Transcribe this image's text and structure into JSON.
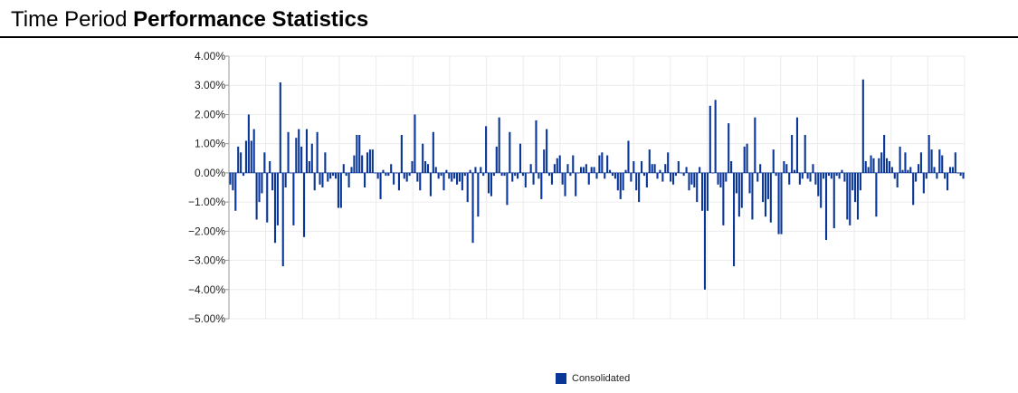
{
  "header": {
    "title_light": "Time Period",
    "title_bold": "Performance Statistics"
  },
  "colors": {
    "bar": "#0a3697",
    "grid": "#ececec",
    "header_rule": "#000000"
  },
  "chart_data": {
    "type": "bar",
    "title": "",
    "xlabel": "",
    "ylabel": "",
    "ylim": [
      -5,
      4
    ],
    "y_ticks": [
      4,
      3,
      2,
      1,
      0,
      -1,
      -2,
      -3,
      -4,
      -5
    ],
    "y_tick_labels": [
      "4.00%",
      "3.00%",
      "2.00%",
      "1.00%",
      "0.00%",
      "−1.00%",
      "−2.00%",
      "−3.00%",
      "−4.00%",
      "−5.00%"
    ],
    "grid": true,
    "legend_position": "bottom",
    "series": [
      {
        "name": "Consolidated",
        "values": [
          -0.4,
          -0.6,
          -1.3,
          0.9,
          0.7,
          -0.1,
          1.1,
          2.0,
          1.1,
          1.5,
          -1.6,
          -1.0,
          -0.7,
          0.7,
          -1.7,
          0.4,
          -0.6,
          -2.4,
          -1.8,
          3.1,
          -3.2,
          -0.5,
          1.4,
          0,
          -1.8,
          1.2,
          1.5,
          0.9,
          -2.2,
          1.5,
          0.4,
          1.0,
          -0.6,
          1.4,
          -0.4,
          -0.5,
          0.7,
          -0.3,
          -0.2,
          -0.1,
          -0.2,
          -1.2,
          -1.2,
          0.3,
          -0.1,
          -0.5,
          0.2,
          0.6,
          1.3,
          1.3,
          0.6,
          -0.5,
          0.7,
          0.8,
          0.8,
          0,
          -0.2,
          -0.9,
          0.1,
          -0.1,
          -0.1,
          0.3,
          -0.4,
          0,
          -0.6,
          1.3,
          -0.2,
          -0.3,
          -0.1,
          0.4,
          2.0,
          -0.3,
          -0.6,
          1.0,
          0.4,
          0.3,
          -0.8,
          1.4,
          0.2,
          -0.2,
          -0.1,
          -0.6,
          0.1,
          -0.2,
          -0.3,
          -0.2,
          -0.4,
          -0.3,
          -0.6,
          -0.1,
          -1.0,
          0.1,
          -2.4,
          0.2,
          -1.5,
          0.2,
          -0.1,
          1.6,
          -0.7,
          -0.8,
          -0.1,
          0.9,
          1.9,
          -0.1,
          -0.1,
          -1.1,
          1.4,
          -0.3,
          -0.1,
          -0.2,
          1.0,
          -0.1,
          -0.5,
          0,
          0.3,
          -0.4,
          1.8,
          -0.2,
          -0.9,
          0.8,
          1.5,
          -0.1,
          -0.4,
          0.3,
          0.5,
          0.6,
          -0.4,
          -0.8,
          0.3,
          -0.1,
          0.6,
          -0.8,
          0,
          0.2,
          0.2,
          0.3,
          -0.4,
          0.2,
          0.2,
          -0.2,
          0.6,
          0.7,
          -0.2,
          0.6,
          0.1,
          -0.1,
          -0.2,
          -0.6,
          -0.9,
          -0.6,
          0.1,
          1.1,
          -0.3,
          0.4,
          -0.6,
          -1.0,
          0.4,
          -0.1,
          -0.5,
          0.8,
          0.3,
          0.3,
          -0.2,
          0.1,
          -0.3,
          0.3,
          0.7,
          -0.3,
          -0.4,
          -0.1,
          0.4,
          0,
          -0.1,
          0.2,
          -0.6,
          -0.4,
          -0.5,
          -1.0,
          0.2,
          -1.3,
          -4.0,
          -1.3,
          2.3,
          0,
          2.5,
          -0.4,
          -0.5,
          -1.8,
          -0.3,
          1.7,
          0.4,
          -3.2,
          -0.7,
          -1.5,
          -1.2,
          0.9,
          1.0,
          -0.7,
          -1.6,
          1.9,
          -0.3,
          0.3,
          -1.0,
          -1.5,
          -0.9,
          -1.7,
          0.8,
          -0.1,
          -2.1,
          -2.1,
          0.4,
          0.3,
          -0.4,
          1.3,
          0.1,
          1.9,
          -0.4,
          -0.2,
          1.3,
          -0.2,
          -0.3,
          0.3,
          -0.4,
          -0.8,
          -1.2,
          -0.2,
          -2.3,
          -0.1,
          -0.2,
          -1.9,
          -0.1,
          -0.2,
          0.1,
          -0.3,
          -1.6,
          -1.8,
          -0.6,
          -1.0,
          -1.6,
          -0.6,
          3.2,
          0.4,
          0.2,
          0.6,
          0.5,
          -1.5,
          0.5,
          0.7,
          1.3,
          0.5,
          0.4,
          0.2,
          -0.2,
          -0.5,
          0.9,
          0.1,
          0.7,
          0.1,
          0.2,
          -1.1,
          -0.3,
          0.3,
          0.7,
          -0.7,
          -0.2,
          1.3,
          0.8,
          0.2,
          -0.2,
          0.8,
          0.6,
          -0.2,
          -0.6,
          0.2,
          0.2,
          0.7,
          0,
          -0.1,
          -0.2
        ]
      }
    ]
  }
}
